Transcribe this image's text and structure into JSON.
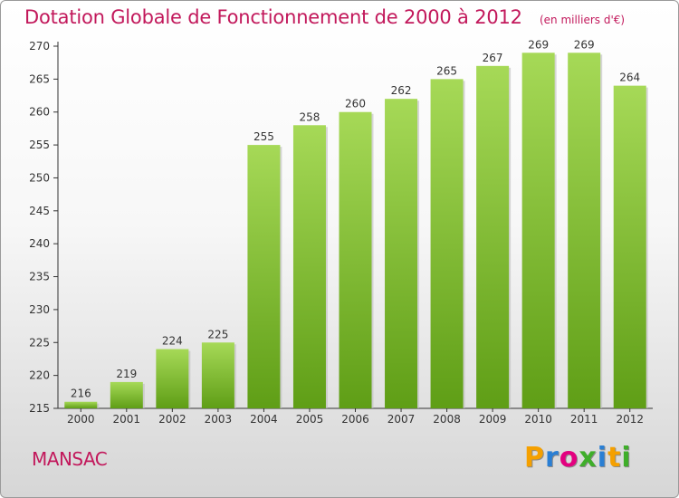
{
  "chart_data": {
    "type": "bar",
    "title": "Dotation Globale de Fonctionnement de 2000 à 2012",
    "subtitle": "(en milliers d'€)",
    "categories": [
      "2000",
      "2001",
      "2002",
      "2003",
      "2004",
      "2005",
      "2006",
      "2007",
      "2008",
      "2009",
      "2010",
      "2011",
      "2012"
    ],
    "values": [
      216,
      219,
      224,
      225,
      255,
      258,
      260,
      262,
      265,
      267,
      269,
      269,
      264
    ],
    "ylim": [
      215,
      270
    ],
    "yticks": [
      215,
      220,
      225,
      230,
      235,
      240,
      245,
      250,
      255,
      260,
      265,
      270
    ],
    "grid": false,
    "bar_color": "#7cc22e",
    "bar_color_light": "#a6d957",
    "bar_color_dark": "#5f9e16"
  },
  "footer": {
    "place_name": "MANSAC",
    "brand": [
      "P",
      "r",
      "o",
      "x",
      "i",
      "t",
      "i"
    ],
    "brand_colors": [
      "#f5a000",
      "#2a7fd4",
      "#e3007f",
      "#3fae2a",
      "#2a7fd4",
      "#f5a000",
      "#3fae2a"
    ]
  }
}
